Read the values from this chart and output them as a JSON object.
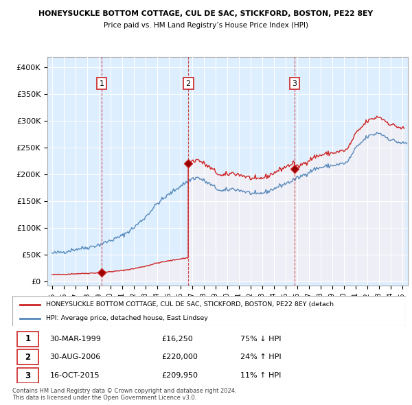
{
  "title1": "HONEYSUCKLE BOTTOM COTTAGE, CUL DE SAC, STICKFORD, BOSTON, PE22 8EY",
  "title2": "Price paid vs. HM Land Registry’s House Price Index (HPI)",
  "sale_years_exact": [
    1999.25,
    2006.67,
    2015.79
  ],
  "sale_prices": [
    16250,
    220000,
    209950
  ],
  "sale_labels": [
    "1",
    "2",
    "3"
  ],
  "hpi_line_color": "#5588bb",
  "hpi_fill_color": "#ddeeff",
  "price_line_color": "#cc2222",
  "price_fill_color": "#ffdddd",
  "legend_label_price": "HONEYSUCKLE BOTTOM COTTAGE, CUL DE SAC, STICKFORD, BOSTON, PE22 8EY (detach",
  "legend_label_hpi": "HPI: Average price, detached house, East Lindsey",
  "table_rows": [
    [
      "1",
      "30-MAR-1999",
      "£16,250",
      "75% ↓ HPI"
    ],
    [
      "2",
      "30-AUG-2006",
      "£220,000",
      "24% ↑ HPI"
    ],
    [
      "3",
      "16-OCT-2015",
      "£209,950",
      "11% ↑ HPI"
    ]
  ],
  "footnote1": "Contains HM Land Registry data © Crown copyright and database right 2024.",
  "footnote2": "This data is licensed under the Open Government Licence v3.0.",
  "ylim_max": 420000,
  "xlim_min": 1994.6,
  "xlim_max": 2025.5,
  "yticks": [
    0,
    50000,
    100000,
    150000,
    200000,
    250000,
    300000,
    350000,
    400000
  ]
}
